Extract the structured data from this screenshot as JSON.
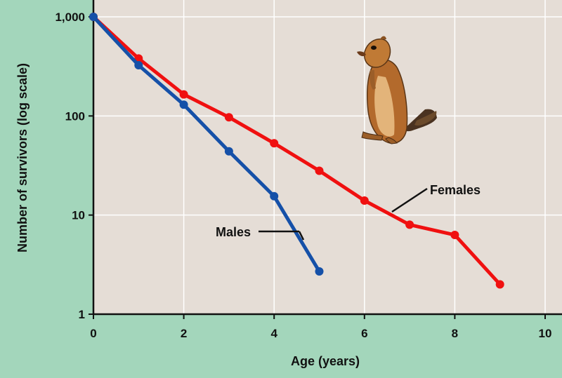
{
  "chart_data": {
    "type": "line",
    "xlabel": "Age (years)",
    "ylabel": "Number of survivors (log scale)",
    "xlim": [
      0,
      10
    ],
    "ylim": [
      1,
      1000
    ],
    "y_scale": "log",
    "grid": true,
    "x_ticks": [
      0,
      2,
      4,
      6,
      8,
      10
    ],
    "x_tick_labels": [
      "0",
      "2",
      "4",
      "6",
      "8",
      "10"
    ],
    "y_ticks": [
      1,
      10,
      100,
      1000
    ],
    "y_tick_labels": [
      "1",
      "10",
      "100",
      "1,000"
    ],
    "series": [
      {
        "name": "Females",
        "color": "#f01010",
        "x": [
          0,
          1,
          2,
          3,
          4,
          5,
          6,
          7,
          8,
          9
        ],
        "y": [
          1000,
          380,
          165,
          97,
          53,
          28,
          14,
          8,
          6.3,
          2
        ]
      },
      {
        "name": "Males",
        "color": "#1550a8",
        "x": [
          0,
          1,
          2,
          3,
          4,
          5
        ],
        "y": [
          1000,
          325,
          130,
          44,
          15.5,
          2.7
        ]
      }
    ]
  },
  "colors": {
    "background": "#a3d6bb",
    "plot_area": "#e5ddd6",
    "grid": "#ffffff",
    "axis": "#111111"
  },
  "illustration": {
    "icon": "ground-squirrel-icon"
  }
}
